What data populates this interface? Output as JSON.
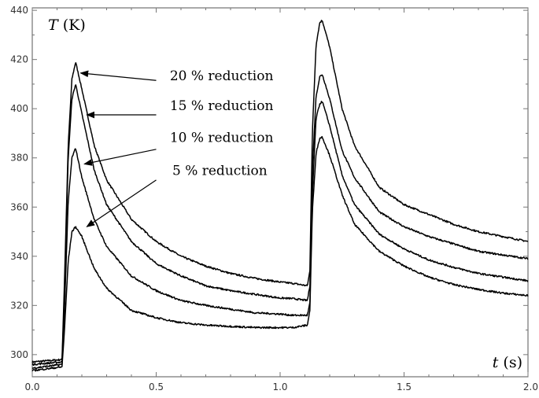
{
  "chart_data": {
    "type": "line",
    "title": "",
    "xlabel_var": "t",
    "xlabel_unit": " (s)",
    "ylabel_var": "T",
    "ylabel_unit": " (K)",
    "xlim": [
      0.0,
      2.0
    ],
    "ylim": [
      291,
      441
    ],
    "x_ticks": [
      0.0,
      0.5,
      1.0,
      1.5,
      2.0
    ],
    "x_tick_labels": [
      "0.0",
      "0.5",
      "1.0",
      "1.5",
      "2.0"
    ],
    "y_ticks": [
      300,
      320,
      340,
      360,
      380,
      400,
      420,
      440
    ],
    "y_tick_labels": [
      "300",
      "320",
      "340",
      "360",
      "380",
      "400",
      "420",
      "440"
    ],
    "grid": false,
    "line_color": "#000000",
    "series": [
      {
        "label": "20 % reduction",
        "baseline": 297,
        "x": [
          0.0,
          0.12,
          0.13,
          0.145,
          0.16,
          0.175,
          0.2,
          0.25,
          0.3,
          0.4,
          0.5,
          0.6,
          0.7,
          0.8,
          0.9,
          1.0,
          1.05,
          1.11,
          1.12,
          1.13,
          1.145,
          1.16,
          1.17,
          1.2,
          1.25,
          1.3,
          1.4,
          1.5,
          1.6,
          1.7,
          1.8,
          1.9,
          2.0
        ],
        "values": [
          297,
          298,
          330,
          385,
          412,
          419,
          408,
          385,
          371,
          355,
          346,
          340,
          336,
          333,
          331,
          329.5,
          329,
          328,
          334,
          390,
          426,
          435,
          436,
          425,
          400,
          385,
          368,
          361,
          357,
          353,
          350,
          348,
          346
        ]
      },
      {
        "label": "15 % reduction",
        "baseline": 296,
        "x": [
          0.0,
          0.12,
          0.13,
          0.145,
          0.16,
          0.175,
          0.2,
          0.25,
          0.3,
          0.4,
          0.5,
          0.6,
          0.7,
          0.8,
          0.9,
          1.0,
          1.05,
          1.11,
          1.12,
          1.13,
          1.145,
          1.16,
          1.17,
          1.2,
          1.25,
          1.3,
          1.4,
          1.5,
          1.6,
          1.7,
          1.8,
          1.9,
          2.0
        ],
        "values": [
          296,
          297,
          325,
          380,
          404,
          410,
          398,
          375,
          361,
          346,
          337,
          332,
          328,
          326,
          324.5,
          323,
          322.8,
          322,
          328,
          375,
          405,
          413,
          414,
          404,
          383,
          372,
          358,
          352,
          348,
          345,
          342,
          340.5,
          339
        ]
      },
      {
        "label": "10 % reduction",
        "baseline": 294.5,
        "x": [
          0.0,
          0.12,
          0.13,
          0.145,
          0.16,
          0.175,
          0.2,
          0.25,
          0.3,
          0.4,
          0.5,
          0.6,
          0.7,
          0.8,
          0.9,
          1.0,
          1.05,
          1.11,
          1.12,
          1.13,
          1.145,
          1.16,
          1.17,
          1.2,
          1.25,
          1.3,
          1.4,
          1.5,
          1.6,
          1.7,
          1.8,
          1.9,
          2.0
        ],
        "values": [
          294.5,
          296,
          318,
          362,
          380,
          384,
          372,
          355,
          344,
          332,
          326,
          322,
          320,
          318.5,
          317,
          316.5,
          316,
          316,
          321,
          365,
          396,
          402,
          403,
          393,
          373,
          361,
          349,
          343,
          338.5,
          335.5,
          333,
          331.5,
          330
        ]
      },
      {
        "label": "5 % reduction",
        "baseline": 293.5,
        "x": [
          0.0,
          0.12,
          0.13,
          0.145,
          0.16,
          0.175,
          0.2,
          0.25,
          0.3,
          0.4,
          0.5,
          0.6,
          0.7,
          0.8,
          0.9,
          1.0,
          1.05,
          1.11,
          1.12,
          1.13,
          1.145,
          1.16,
          1.17,
          1.2,
          1.25,
          1.3,
          1.4,
          1.5,
          1.6,
          1.7,
          1.8,
          1.9,
          2.0
        ],
        "values": [
          293.5,
          295,
          310,
          338,
          350,
          352,
          348,
          335,
          327,
          318,
          315,
          313,
          312,
          311.5,
          311,
          311,
          311,
          312,
          318,
          358,
          382,
          388,
          388.5,
          381,
          365,
          353,
          342,
          336,
          331.5,
          328.5,
          326.5,
          325,
          324
        ]
      }
    ],
    "annotations": [
      {
        "text": "20 % reduction",
        "text_x": 0.555,
        "text_y": 411.5,
        "arrow_tail_x": 0.5,
        "arrow_tail_y": 411.5,
        "arrow_head_x": 0.195,
        "arrow_head_y": 414.5
      },
      {
        "text": "15 % reduction",
        "text_x": 0.555,
        "text_y": 399.5,
        "arrow_tail_x": 0.5,
        "arrow_tail_y": 397.5,
        "arrow_head_x": 0.22,
        "arrow_head_y": 397.5
      },
      {
        "text": "10 % reduction",
        "text_x": 0.555,
        "text_y": 386.5,
        "arrow_tail_x": 0.5,
        "arrow_tail_y": 383.5,
        "arrow_head_x": 0.21,
        "arrow_head_y": 377.5
      },
      {
        "text": "5 % reduction",
        "text_x": 0.565,
        "text_y": 373,
        "arrow_tail_x": 0.5,
        "arrow_tail_y": 371,
        "arrow_head_x": 0.22,
        "arrow_head_y": 352
      }
    ]
  }
}
